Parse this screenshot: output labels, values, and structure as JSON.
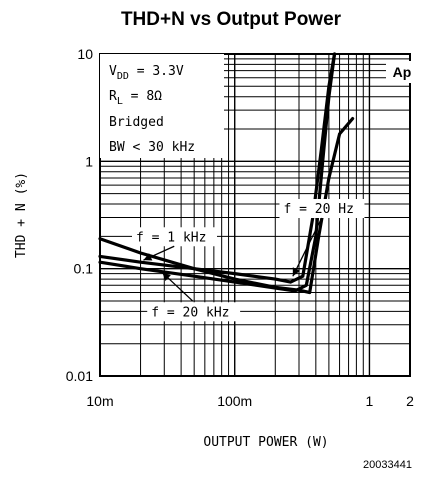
{
  "chart_data": {
    "type": "line",
    "title": "THD+N vs Output Power",
    "xlabel": "OUTPUT POWER (W)",
    "ylabel": "THD + N (%)",
    "x_scale": "log",
    "y_scale": "log",
    "xlim": [
      0.01,
      2
    ],
    "ylim": [
      0.01,
      10
    ],
    "x_ticks": [
      {
        "value": 0.01,
        "label": "10m"
      },
      {
        "value": 0.1,
        "label": "100m"
      },
      {
        "value": 1,
        "label": "1"
      },
      {
        "value": 2,
        "label": "2"
      }
    ],
    "y_ticks": [
      {
        "value": 10,
        "label": "10"
      },
      {
        "value": 1,
        "label": "1"
      },
      {
        "value": 0.1,
        "label": "0.1"
      },
      {
        "value": 0.01,
        "label": "0.01"
      }
    ],
    "grid": true,
    "conditions": {
      "vdd_label": "V",
      "vdd_sub": "DD",
      "vdd_value": " = 3.3V",
      "rl_label": "R",
      "rl_sub": "L",
      "rl_value": " = 8Ω",
      "mode": "Bridged",
      "bw": "BW < 30 kHz"
    },
    "badge": "Ap",
    "figure_id": "20033441",
    "series": [
      {
        "name": "f = 1 kHz",
        "x": [
          0.01,
          0.02,
          0.05,
          0.1,
          0.2,
          0.28,
          0.34,
          0.4,
          0.45,
          0.5,
          0.55
        ],
        "y": [
          0.115,
          0.1,
          0.085,
          0.075,
          0.066,
          0.062,
          0.07,
          0.2,
          1.0,
          4.0,
          10
        ]
      },
      {
        "name": "f = 20 Hz",
        "x": [
          0.01,
          0.02,
          0.05,
          0.1,
          0.2,
          0.26,
          0.32,
          0.38,
          0.44,
          0.5,
          0.55
        ],
        "y": [
          0.13,
          0.115,
          0.1,
          0.09,
          0.08,
          0.075,
          0.085,
          0.3,
          1.3,
          5.0,
          10
        ]
      },
      {
        "name": "f = 20 kHz",
        "x": [
          0.01,
          0.02,
          0.05,
          0.1,
          0.2,
          0.3,
          0.36,
          0.42,
          0.5,
          0.6,
          0.75
        ],
        "y": [
          0.19,
          0.14,
          0.1,
          0.08,
          0.067,
          0.063,
          0.06,
          0.2,
          0.7,
          1.8,
          2.5
        ]
      }
    ],
    "annotations": [
      {
        "text": "f =  1 kHz",
        "x": 0.0185,
        "y": 0.18,
        "arrow_x": 0.021,
        "arrow_y": 0.12
      },
      {
        "text": "f =  20 Hz",
        "x": 0.23,
        "y": 0.33,
        "arrow_x": 0.27,
        "arrow_y": 0.085
      },
      {
        "text": "f =  20 kHz",
        "x": 0.024,
        "y": 0.036,
        "arrow_x": 0.029,
        "arrow_y": 0.092
      }
    ]
  }
}
